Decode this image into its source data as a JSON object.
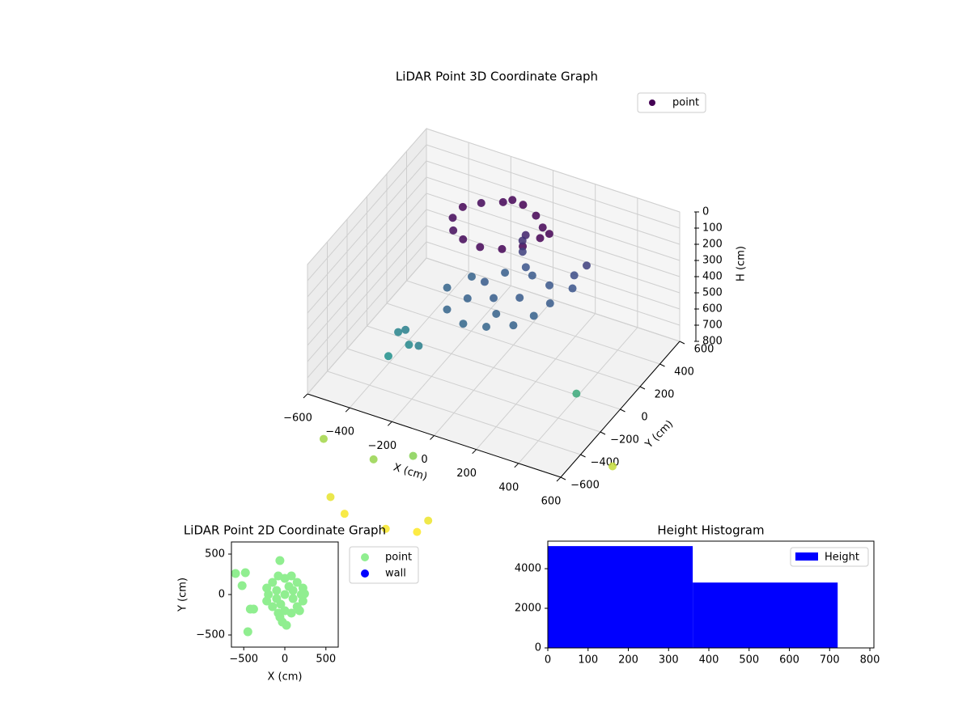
{
  "chart_data": [
    {
      "type": "scatter3d",
      "title": "LiDAR Point 3D Coordinate Graph",
      "xlabel": "X (cm)",
      "ylabel": "Y (cm)",
      "zlabel": "H (cm)",
      "xlim": [
        -600,
        600
      ],
      "ylim": [
        -600,
        600
      ],
      "zlim": [
        800,
        0
      ],
      "xticks": [
        {
          "value": -600,
          "label": "−600"
        },
        {
          "value": -400,
          "label": "−400"
        },
        {
          "value": -200,
          "label": "−200"
        },
        0,
        200,
        400,
        600
      ],
      "yticks": [
        {
          "value": -600,
          "label": "−600"
        },
        {
          "value": -400,
          "label": "−400"
        },
        {
          "value": -200,
          "label": "−200"
        },
        0,
        200,
        400,
        600
      ],
      "zticks": [
        0,
        100,
        200,
        300,
        400,
        500,
        600,
        700,
        800
      ],
      "colormap": "viridis",
      "grid": true,
      "legend": "upper right",
      "series": [
        {
          "name": "point",
          "x": [
            150,
            120,
            60,
            -20,
            -110,
            -190,
            -240,
            -250,
            -210,
            -140,
            -50,
            40,
            110,
            170,
            -80,
            30,
            20,
            40,
            10,
            -150,
            -50,
            50,
            150,
            200,
            230,
            180,
            80,
            -40,
            -160,
            -220,
            -100,
            0,
            100,
            50,
            -80,
            260,
            280,
            300,
            -320,
            -260,
            -300,
            -330,
            -200,
            430,
            -500,
            -240,
            -90,
            -350,
            -260,
            80,
            60,
            -60,
            620
          ],
          "y": [
            150,
            240,
            300,
            340,
            330,
            280,
            200,
            120,
            40,
            -10,
            -30,
            0,
            60,
            200,
            360,
            260,
            250,
            240,
            270,
            -150,
            -200,
            -180,
            -120,
            -20,
            80,
            180,
            220,
            200,
            120,
            0,
            -50,
            0,
            50,
            -80,
            80,
            260,
            200,
            300,
            -380,
            -300,
            -250,
            -260,
            -330,
            -80,
            -650,
            -700,
            -620,
            -900,
            -950,
            -830,
            -900,
            -960,
            -120
          ],
          "z": [
            40,
            50,
            45,
            40,
            55,
            60,
            50,
            65,
            70,
            60,
            55,
            50,
            45,
            40,
            50,
            150,
            250,
            330,
            200,
            400,
            410,
            400,
            390,
            380,
            360,
            340,
            350,
            370,
            390,
            400,
            380,
            370,
            360,
            390,
            360,
            300,
            330,
            250,
            600,
            560,
            520,
            540,
            520,
            720,
            1000,
            980,
            950,
            1120,
            1150,
            1130,
            1160,
            1150,
            1060
          ]
        }
      ]
    },
    {
      "type": "scatter",
      "title": "LiDAR Point 2D Coordinate Graph",
      "xlabel": "X (cm)",
      "ylabel": "Y (cm)",
      "xlim": [
        -650,
        650
      ],
      "ylim": [
        -650,
        650
      ],
      "xticks": [
        {
          "value": -500,
          "label": "−500"
        },
        0,
        500
      ],
      "yticks": [
        {
          "value": -500,
          "label": "−500"
        },
        0,
        500
      ],
      "legend": "outside upper right",
      "series": [
        {
          "name": "point",
          "color": "#90ee90",
          "x": [
            0,
            100,
            -100,
            100,
            -100,
            200,
            -200,
            0,
            0,
            150,
            -150,
            150,
            -150,
            220,
            -220,
            220,
            -220,
            80,
            -80,
            80,
            -80,
            50,
            -50,
            180,
            -30,
            -60,
            240,
            -60,
            -600,
            -480,
            -520,
            -420,
            -380,
            -450,
            20
          ],
          "y": [
            0,
            50,
            50,
            -50,
            -50,
            0,
            0,
            200,
            -200,
            150,
            150,
            -150,
            -150,
            80,
            80,
            -80,
            -80,
            230,
            230,
            -230,
            -230,
            100,
            -120,
            -200,
            -340,
            -280,
            10,
            420,
            260,
            270,
            110,
            -180,
            -180,
            -460,
            -380
          ]
        },
        {
          "name": "wall",
          "color": "#0000ff",
          "x": [],
          "y": []
        }
      ]
    },
    {
      "type": "histogram",
      "title": "Height Histogram",
      "name": "Height",
      "color": "#0000ff",
      "bins": [
        0,
        360,
        720
      ],
      "values": [
        5140,
        3300
      ],
      "xlim": [
        0,
        810
      ],
      "ylim": [
        0,
        5390
      ],
      "xticks": [
        0,
        100,
        200,
        300,
        400,
        500,
        600,
        700,
        800
      ],
      "yticks": [
        0,
        2000,
        4000
      ],
      "legend": "upper right"
    }
  ]
}
